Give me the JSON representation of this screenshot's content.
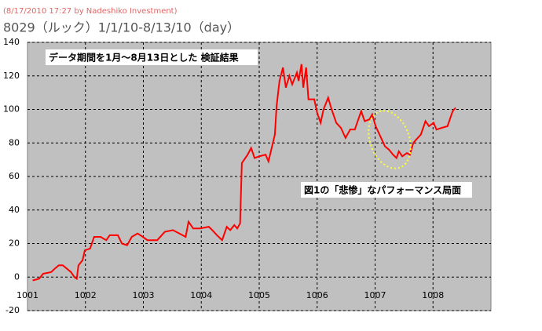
{
  "chart_data": {
    "type": "line",
    "subtitle": "(8/17/2010 17:27 by Nadeshiko Investment)",
    "title": "8029（ルック）1/1/10-8/13/10（day）",
    "annotations": [
      "データ期間を1月～8月13日とした 検証結果",
      "図1の「悲惨」なパフォーマンス局面"
    ],
    "xlim": [
      1001,
      1009
    ],
    "xticks": [
      1001,
      1002,
      1003,
      1004,
      1005,
      1006,
      1007,
      1008
    ],
    "ylim": [
      -20,
      140
    ],
    "yticks": [
      -20,
      0,
      20,
      40,
      60,
      80,
      100,
      120,
      140
    ],
    "grid": true,
    "series": [
      {
        "color": "#ff0000",
        "x": [
          1001.09,
          1001.2,
          1001.27,
          1001.41,
          1001.47,
          1001.54,
          1001.61,
          1001.68,
          1001.75,
          1001.81,
          1001.85,
          1001.88,
          1001.95,
          1001.99,
          1002.08,
          1002.15,
          1002.26,
          1002.36,
          1002.42,
          1002.56,
          1002.63,
          1002.72,
          1002.8,
          1002.9,
          1002.99,
          1003.07,
          1003.24,
          1003.37,
          1003.51,
          1003.62,
          1003.73,
          1003.78,
          1003.86,
          1003.98,
          1004.13,
          1004.19,
          1004.27,
          1004.36,
          1004.44,
          1004.5,
          1004.57,
          1004.62,
          1004.67,
          1004.7,
          1004.8,
          1004.86,
          1004.92,
          1005.0,
          1005.11,
          1005.16,
          1005.27,
          1005.3,
          1005.35,
          1005.41,
          1005.46,
          1005.52,
          1005.57,
          1005.65,
          1005.68,
          1005.73,
          1005.76,
          1005.81,
          1005.85,
          1005.95,
          1006.0,
          1006.06,
          1006.11,
          1006.19,
          1006.25,
          1006.33,
          1006.41,
          1006.49,
          1006.57,
          1006.65,
          1006.76,
          1006.82,
          1006.9,
          1006.95,
          1007.01,
          1007.09,
          1007.17,
          1007.24,
          1007.31,
          1007.37,
          1007.41,
          1007.47,
          1007.55,
          1007.6,
          1007.66,
          1007.71,
          1007.79,
          1007.87,
          1007.93,
          1008.01,
          1008.06,
          1008.15,
          1008.25,
          1008.34,
          1008.39
        ],
        "values": [
          -2,
          -1,
          2,
          3,
          5,
          7,
          7,
          5,
          3,
          0,
          -1,
          7,
          10,
          16,
          17,
          24,
          24,
          22,
          25,
          25,
          20,
          19,
          24,
          26,
          24,
          22,
          22,
          27,
          28,
          26,
          24,
          33,
          29,
          29,
          30,
          28,
          25,
          22,
          30,
          28,
          31,
          29,
          32,
          68,
          73,
          77,
          71,
          72,
          73,
          69,
          85,
          102,
          117,
          125,
          113,
          120,
          115,
          122,
          117,
          127,
          113,
          125,
          106,
          106,
          98,
          92,
          100,
          107,
          100,
          92,
          89,
          83,
          88,
          88,
          99,
          93,
          94,
          97,
          90,
          84,
          78,
          76,
          73,
          71,
          75,
          72,
          74,
          73,
          80,
          82,
          85,
          93,
          90,
          92,
          88,
          89,
          90,
          99,
          101
        ]
      }
    ]
  }
}
